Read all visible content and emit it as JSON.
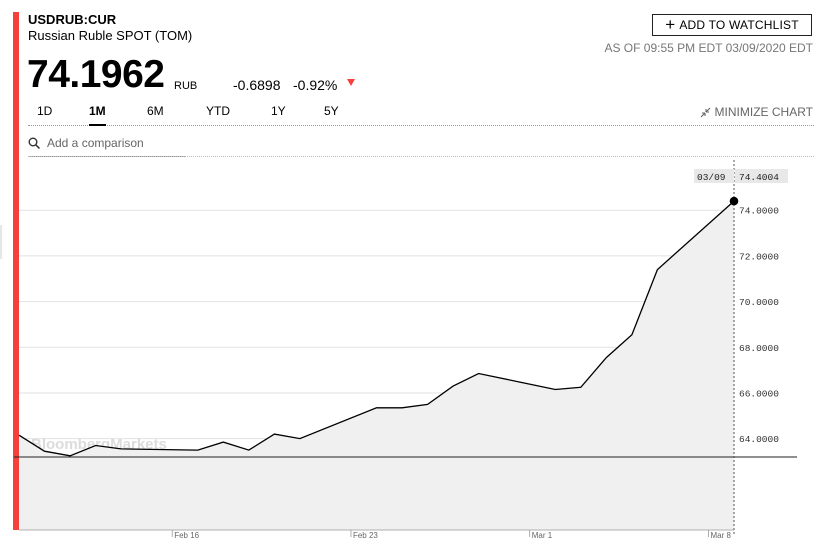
{
  "header": {
    "ticker": "USDRUB:CUR",
    "name": "Russian Ruble SPOT (TOM)",
    "watchlist_label": "ADD TO WATCHLIST",
    "as_of": "AS OF 09:55 PM EDT 03/09/2020 EDT",
    "price": "74.1962",
    "currency": "RUB",
    "change": "-0.6898",
    "change_pct": "-0.92%"
  },
  "tabs": [
    "1D",
    "1M",
    "6M",
    "YTD",
    "1Y",
    "5Y"
  ],
  "active_tab": "1M",
  "minimize_label": "MINIMIZE CHART",
  "comparison": {
    "placeholder": "Add a comparison"
  },
  "colors": {
    "accent": "#f5403c",
    "line": "#000000",
    "area": "#f0f0f0",
    "grid": "#e2e2e2"
  },
  "chart_data": {
    "type": "area",
    "x": [
      "2020-02-10",
      "2020-02-11",
      "2020-02-12",
      "2020-02-13",
      "2020-02-14",
      "2020-02-17",
      "2020-02-18",
      "2020-02-19",
      "2020-02-20",
      "2020-02-21",
      "2020-02-24",
      "2020-02-25",
      "2020-02-26",
      "2020-02-27",
      "2020-02-28",
      "2020-03-02",
      "2020-03-03",
      "2020-03-04",
      "2020-03-05",
      "2020-03-06",
      "2020-03-09"
    ],
    "values": [
      64.15,
      63.45,
      63.25,
      63.7,
      63.55,
      63.5,
      63.85,
      63.5,
      64.2,
      64.0,
      65.35,
      65.35,
      65.5,
      66.3,
      66.85,
      66.15,
      66.25,
      67.55,
      68.55,
      71.4,
      74.4
    ],
    "ylim": [
      60.0,
      76.2
    ],
    "y_ticks": [
      "64.0000",
      "66.0000",
      "68.0000",
      "70.0000",
      "72.0000",
      "74.0000"
    ],
    "x_ticks": [
      "Feb 16",
      "Feb 23",
      "Mar 1",
      "Mar 8"
    ],
    "last_date_label": "03/09",
    "last_value_label": "74.4004",
    "grid": true,
    "watermark": "BloombergMarkets"
  }
}
